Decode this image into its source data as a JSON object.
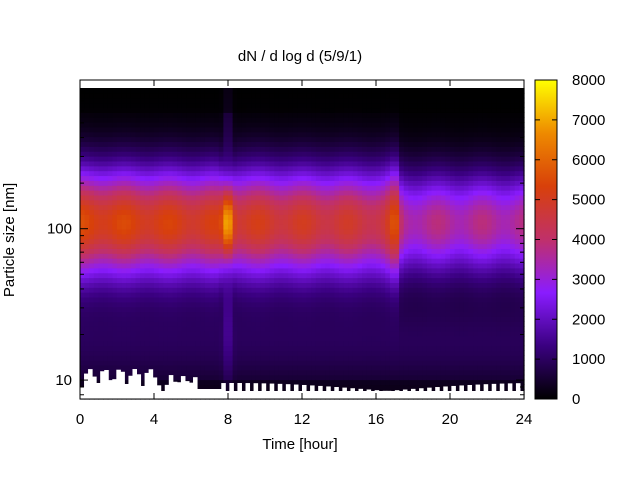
{
  "chart_data": {
    "type": "heatmap",
    "title": "dN / d log d (5/9/1)",
    "xlabel": "Time [hour]",
    "ylabel": "Particle size [nm]",
    "x_range": [
      0,
      24
    ],
    "x_ticks": [
      0,
      4,
      8,
      12,
      16,
      20,
      24
    ],
    "y_scale": "log",
    "y_range": [
      7.5,
      850
    ],
    "y_ticks": [
      10,
      100
    ],
    "colorbar": {
      "range": [
        0,
        8000
      ],
      "ticks": [
        0,
        1000,
        2000,
        3000,
        4000,
        5000,
        6000,
        7000,
        8000
      ],
      "colormap": "gnuplot-black-purple-red-yellow",
      "colors": [
        "#000000",
        "#3a0080",
        "#8a1cff",
        "#c0306a",
        "#d8400a",
        "#ee8a00",
        "#ffff00"
      ]
    },
    "peak_diameter_nm": 110,
    "features": [
      {
        "time_hr": 8,
        "description": "sharp narrow burst"
      },
      {
        "time_hr": 17,
        "description": "burst followed by lower concentrations"
      }
    ],
    "grid": false
  }
}
